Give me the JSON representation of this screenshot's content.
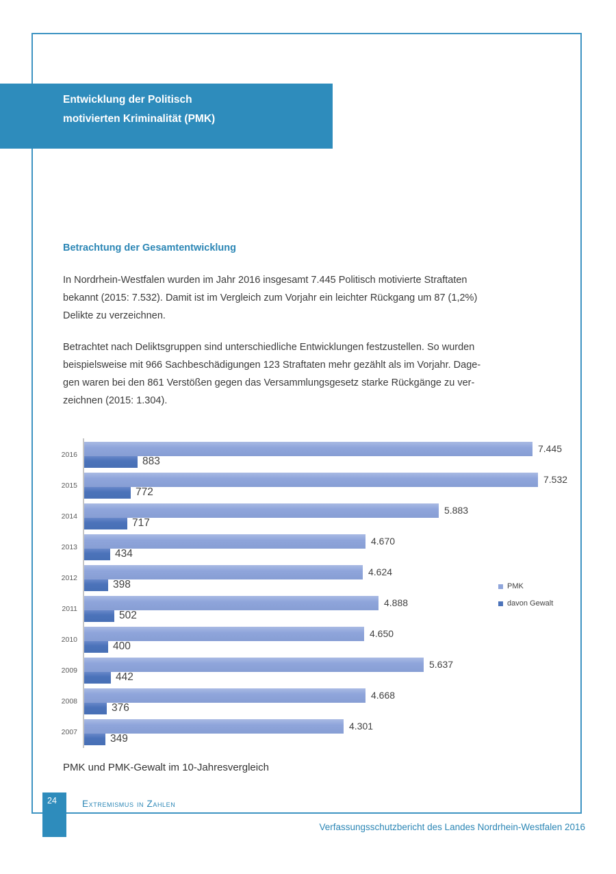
{
  "header": {
    "title": "Entwicklung der Politisch\nmotivierten Kriminalität (PMK)"
  },
  "main": {
    "section_heading": "Betrachtung der Gesamtentwicklung",
    "paragraph1": "In Nordrhein-Westfalen wurden im Jahr 2016 insgesamt 7.445 Politisch motivierte Straftaten\nbekannt (2015: 7.532). Damit ist im Vergleich zum Vorjahr ein leichter Rückgang um 87 (1,2%)\nDelikte zu verzeichnen.",
    "paragraph2": "Betrachtet nach Deliktsgruppen sind unterschiedliche Entwicklungen festzustellen. So wurden\nbeispielsweise mit 966 Sachbeschädigungen 123 Straftaten mehr gezählt als im Vorjahr. Dage-\ngen waren bei den 861 Verstößen gegen das Versammlungsgesetz starke Rückgänge zu ver-\nzeichnen (2015: 1.304)."
  },
  "chart_data": {
    "type": "bar",
    "orientation": "horizontal",
    "title": "PMK und PMK-Gewalt im 10-Jahresvergleich",
    "categories": [
      "2016",
      "2015",
      "2014",
      "2013",
      "2012",
      "2011",
      "2010",
      "2009",
      "2008",
      "2007"
    ],
    "series": [
      {
        "name": "PMK",
        "color": "#8FA5DB",
        "values": [
          7445,
          7532,
          5883,
          4670,
          4624,
          4888,
          4650,
          5637,
          4668,
          4301
        ],
        "labels": [
          "7.445",
          "7.532",
          "5.883",
          "4.670",
          "4.624",
          "4.888",
          "4.650",
          "5.637",
          "4.668",
          "4.301"
        ]
      },
      {
        "name": "davon Gewalt",
        "color": "#4C73BA",
        "values": [
          883,
          772,
          717,
          434,
          398,
          502,
          400,
          442,
          376,
          349
        ],
        "labels": [
          "883",
          "772",
          "717",
          "434",
          "398",
          "502",
          "400",
          "442",
          "376",
          "349"
        ]
      }
    ],
    "xmax": 7532,
    "legend_position": "right",
    "grid": false,
    "value_labels": true
  },
  "footer": {
    "page_number": "24",
    "section_label": "Extremismus in Zahlen",
    "report_title": "Verfassungsschutzbericht des Landes Nordrhein-Westfalen 2016"
  },
  "colors": {
    "accent_box_blue": "#2E8CBC",
    "heading_text_blue": "#2B86B5",
    "frame_border_blue": "#3D93C2",
    "pmk_bar": "#8FA5DB",
    "gewalt_bar": "#4C73BA",
    "body_text": "#3A3A3A"
  }
}
